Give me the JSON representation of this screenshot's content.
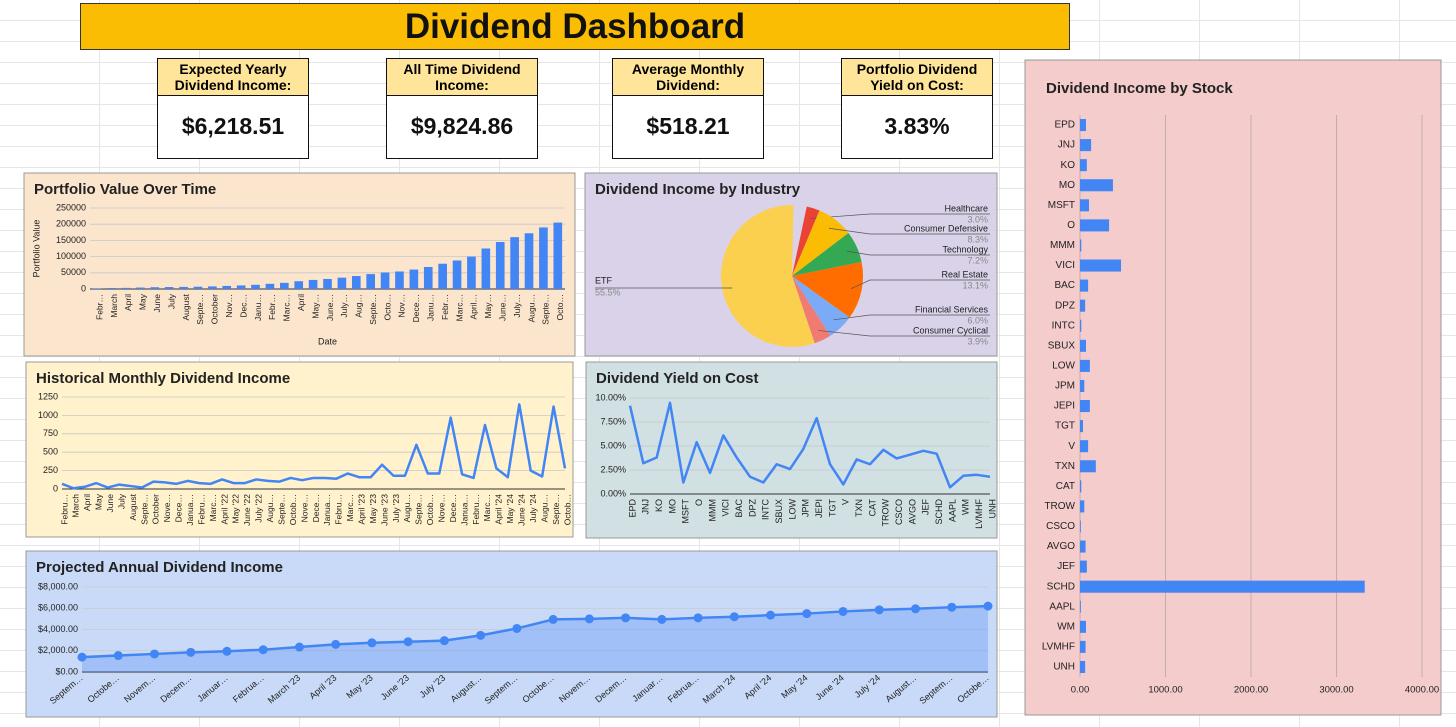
{
  "header": {
    "title": "Dividend Dashboard"
  },
  "kpis": [
    {
      "label": "Expected Yearly Dividend Income:",
      "value": "$6,218.51"
    },
    {
      "label": "All Time Dividend Income:",
      "value": "$9,824.86"
    },
    {
      "label": "Average Monthly Dividend:",
      "value": "$518.21"
    },
    {
      "label": "Portfolio Dividend Yield on Cost:",
      "value": "3.83%"
    }
  ],
  "chart_data": [
    {
      "type": "bar",
      "title": "Portfolio Value Over Time",
      "x_label": "Date",
      "y_label": "Portfolio Value",
      "categories": [
        "Febr…",
        "March",
        "April",
        "May",
        "June",
        "July",
        "August",
        "Septe…",
        "October",
        "Nov…",
        "Dec…",
        "Janu…",
        "Febr…",
        "Marc…",
        "April",
        "May…",
        "June…",
        "July…",
        "Aug…",
        "Septe…",
        "Octo…",
        "Nov…",
        "Dece…",
        "Janu…",
        "Febr…",
        "Marc…",
        "April…",
        "May…",
        "June…",
        "July…",
        "Augu…",
        "Septe…",
        "Octo…"
      ],
      "values": [
        2000,
        3000,
        3500,
        4500,
        5500,
        6000,
        6500,
        7000,
        8000,
        9500,
        11000,
        13000,
        16000,
        19000,
        24000,
        28000,
        31000,
        35000,
        40000,
        46000,
        51000,
        54000,
        60000,
        68000,
        78000,
        88000,
        100000,
        125000,
        145000,
        160000,
        172000,
        190000,
        205000
      ],
      "color": "#4285f4",
      "ylim": [
        0,
        250000
      ],
      "yticks": [
        0,
        50000,
        100000,
        150000,
        200000,
        250000
      ],
      "grid": true
    },
    {
      "type": "pie",
      "title": "Dividend Income by Industry",
      "categories": [
        "Healthcare",
        "Consumer Defensive",
        "Technology",
        "Real Estate",
        "Financial Services",
        "Consumer Cyclical",
        "ETF"
      ],
      "values": [
        3.0,
        8.3,
        7.2,
        13.1,
        6.0,
        3.9,
        55.5
      ],
      "value_labels": [
        "3.0%",
        "8.3%",
        "7.2%",
        "13.1%",
        "6.0%",
        "3.9%",
        "55.5%"
      ],
      "colors": [
        "#ea4335",
        "#fbbc04",
        "#34a853",
        "#ff6d01",
        "#7baaf7",
        "#f07b72",
        "#fcd04f"
      ]
    },
    {
      "type": "line",
      "title": "Historical Monthly Dividend Income",
      "categories": [
        "Febru…",
        "March",
        "April",
        "May",
        "June",
        "July",
        "August",
        "Septe…",
        "October",
        "Nove…",
        "Dece…",
        "Janua…",
        "Febru…",
        "Marc…",
        "April '22",
        "May '22",
        "June '22",
        "July '22",
        "Augu…",
        "Septe…",
        "Octob…",
        "Nove…",
        "Dece…",
        "Janua…",
        "Febru…",
        "Marc…",
        "April '23",
        "May '23",
        "June '23",
        "July '23",
        "Augu…",
        "Septe…",
        "Octob…",
        "Nove…",
        "Dece…",
        "Janua…",
        "Febru…",
        "Marc…",
        "April '24",
        "May '24",
        "June '24",
        "July '24",
        "Augu…",
        "Septe…",
        "Octob…"
      ],
      "values": [
        70,
        10,
        30,
        80,
        20,
        60,
        40,
        20,
        100,
        90,
        70,
        110,
        80,
        70,
        130,
        80,
        80,
        130,
        110,
        100,
        150,
        120,
        150,
        150,
        140,
        210,
        160,
        160,
        330,
        180,
        180,
        600,
        210,
        210,
        970,
        200,
        150,
        870,
        280,
        160,
        1150,
        250,
        170,
        1120,
        280
      ],
      "color": "#4285f4",
      "ylim": [
        0,
        1250
      ],
      "yticks": [
        0,
        250,
        500,
        750,
        1000,
        1250
      ],
      "grid": true
    },
    {
      "type": "line",
      "title": "Dividend Yield on Cost",
      "categories": [
        "EPD",
        "JNJ",
        "KO",
        "MO",
        "MSFT",
        "O",
        "MMM",
        "VICI",
        "BAC",
        "DPZ",
        "INTC",
        "SBUX",
        "LOW",
        "JPM",
        "JEPI",
        "TGT",
        "V",
        "TXN",
        "CAT",
        "TROW",
        "CSCO",
        "AVGO",
        "JEF",
        "SCHD",
        "AAPL",
        "WM",
        "LVMHF",
        "UNH"
      ],
      "values": [
        9.2,
        3.2,
        3.8,
        9.5,
        1.2,
        5.4,
        2.2,
        6.1,
        3.8,
        1.8,
        1.2,
        3.1,
        2.6,
        4.7,
        7.9,
        3.1,
        1.0,
        3.6,
        3.1,
        4.6,
        3.7,
        4.1,
        4.5,
        4.2,
        0.7,
        1.9,
        2.0,
        1.8
      ],
      "color": "#4285f4",
      "ylim": [
        0,
        10
      ],
      "yticks": [
        {
          "value": 0,
          "label": "0.00%"
        },
        {
          "value": 2.5,
          "label": "2.50%"
        },
        {
          "value": 5,
          "label": "5.00%"
        },
        {
          "value": 7.5,
          "label": "7.50%"
        },
        {
          "value": 10,
          "label": "10.00%"
        }
      ],
      "grid": true
    },
    {
      "type": "area",
      "title": "Projected Annual Dividend Income",
      "categories": [
        "Septem…",
        "Octobe…",
        "Novem…",
        "Decem…",
        "Januar…",
        "Februa…",
        "March '23",
        "April '23",
        "May '23",
        "June '23",
        "July '23",
        "August…",
        "Septem…",
        "Octobe…",
        "Novem…",
        "Decem…",
        "Januar…",
        "Februa…",
        "March '24",
        "April '24",
        "May '24",
        "June '24",
        "July '24",
        "August…",
        "Septem…",
        "Octobe…"
      ],
      "values": [
        1400,
        1550,
        1700,
        1850,
        1950,
        2100,
        2350,
        2600,
        2750,
        2850,
        2950,
        3450,
        4100,
        4950,
        5000,
        5100,
        4950,
        5100,
        5200,
        5350,
        5500,
        5700,
        5850,
        5950,
        6100,
        6200
      ],
      "color": "#4285f4",
      "ylim": [
        0,
        8000
      ],
      "yticks": [
        {
          "value": 0,
          "label": "$0.00"
        },
        {
          "value": 2000,
          "label": "$2,000.00"
        },
        {
          "value": 4000,
          "label": "$4,000.00"
        },
        {
          "value": 6000,
          "label": "$6,000.00"
        },
        {
          "value": 8000,
          "label": "$8,000.00"
        }
      ],
      "grid": true
    },
    {
      "type": "hbar",
      "title": "Dividend Income by Stock",
      "categories": [
        "EPD",
        "JNJ",
        "KO",
        "MO",
        "MSFT",
        "O",
        "MMM",
        "VICI",
        "BAC",
        "DPZ",
        "INTC",
        "SBUX",
        "LOW",
        "JPM",
        "JEPI",
        "TGT",
        "V",
        "TXN",
        "CAT",
        "TROW",
        "CSCO",
        "AVGO",
        "JEF",
        "SCHD",
        "AAPL",
        "WM",
        "LVMHF",
        "UNH"
      ],
      "values": [
        70,
        130,
        80,
        385,
        105,
        340,
        15,
        480,
        95,
        60,
        15,
        70,
        115,
        50,
        115,
        35,
        95,
        185,
        15,
        50,
        10,
        65,
        80,
        3330,
        10,
        70,
        65,
        60
      ],
      "color": "#4285f4",
      "xlim": [
        0,
        4000
      ],
      "xticks": [
        {
          "value": 0,
          "label": "0.00"
        },
        {
          "value": 1000,
          "label": "1000.00"
        },
        {
          "value": 2000,
          "label": "2000.00"
        },
        {
          "value": 3000,
          "label": "3000.00"
        },
        {
          "value": 4000,
          "label": "4000.00"
        }
      ],
      "grid": true
    }
  ]
}
